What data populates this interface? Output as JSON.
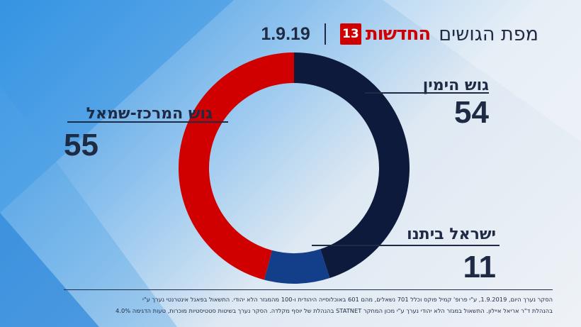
{
  "header": {
    "title": "מפת הגושים",
    "brand_text": "החדשות",
    "brand_badge": "13",
    "date": "1.9.19"
  },
  "colors": {
    "right_bloc": "#0d1a3c",
    "israel_beytenu": "#123e8a",
    "center_left": "#d00000",
    "text": "#1f2a44"
  },
  "chart_data": {
    "type": "pie",
    "donut": true,
    "title": "מפת הגושים",
    "slices": [
      {
        "label": "גוש הימין",
        "value": 54,
        "color": "#0d1a3c"
      },
      {
        "label": "ישראל ביתנו",
        "value": 11,
        "color": "#123e8a"
      },
      {
        "label": "גוש המרכז-שמאל",
        "value": 55,
        "color": "#d00000"
      }
    ],
    "total": 120
  },
  "footer": {
    "line1": "הסקר נערך היום, 1.9.2019, ע\"י פרופ' קמיל פוקס וכלל 701 נשאלים, מהם 601 באוכלוסייה היהודית ו-100 מהמגזר הלא יהודי. התשאול בפאנל אינטרנטי נערך ע\"י",
    "line2": "בהנהלת ד\"ר אריאל איילון. התשאול במגזר הלא יהודי נערך ע\"י מכון המחקר STATNET בהנהלת של יוסף מקלדה. הסקר נערך בשיטות סטטיסטיות מוכרות, טעות הדגימה 4.0%"
  }
}
